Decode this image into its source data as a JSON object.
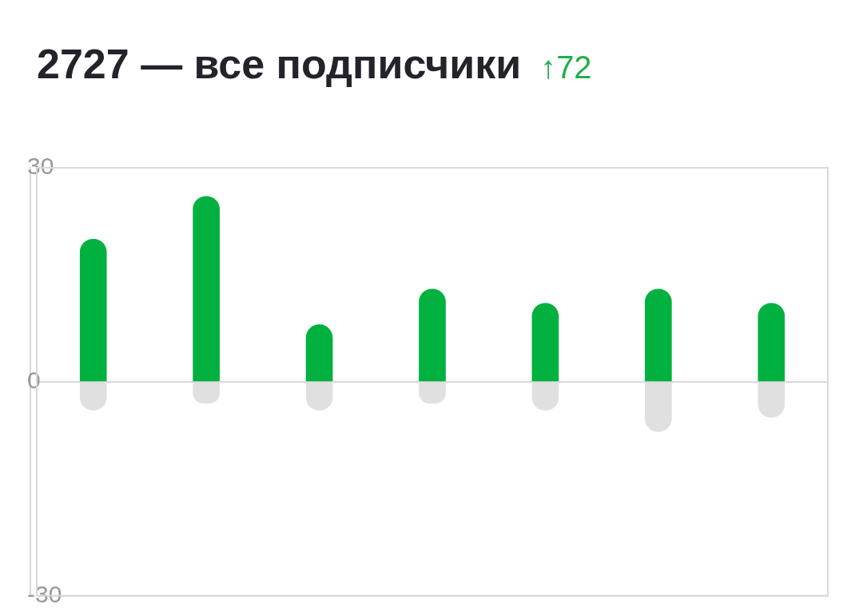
{
  "chart_data": {
    "type": "bar",
    "title": "2727 — все подписчики",
    "subtitle": "↑72",
    "categories": [
      null,
      null,
      null,
      null,
      null,
      null,
      null
    ],
    "series": [
      {
        "color": "#00b140",
        "values": [
          20,
          26,
          8,
          13,
          11,
          13,
          11
        ]
      },
      {
        "color": "#e0e0e0",
        "values": [
          -4,
          -3,
          -4,
          -3,
          -4,
          -7,
          -5
        ]
      }
    ],
    "stacked": true,
    "ylim": [
      -30,
      30
    ],
    "yticks": [
      -30,
      0,
      30
    ],
    "grid": "y"
  }
}
